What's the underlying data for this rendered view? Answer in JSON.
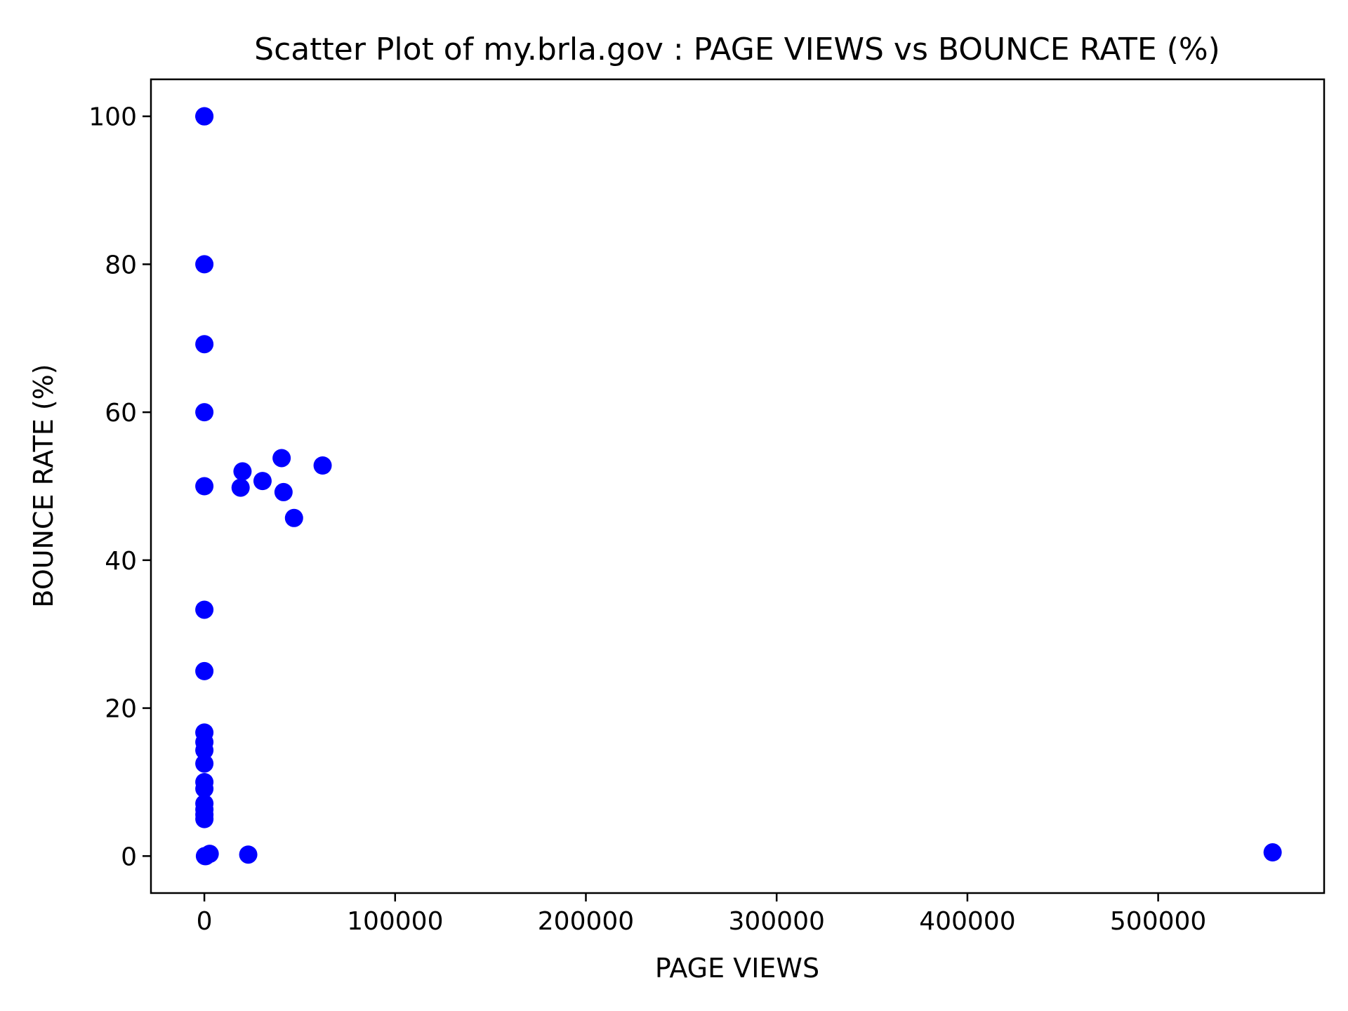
{
  "chart_data": {
    "type": "scatter",
    "title": "Scatter Plot of my.brla.gov : PAGE VIEWS vs BOUNCE RATE (%)",
    "xlabel": "PAGE VIEWS",
    "ylabel": "BOUNCE RATE (%)",
    "xlim": [
      -28000,
      587000
    ],
    "ylim": [
      -5,
      105
    ],
    "x_ticks": [
      0,
      100000,
      200000,
      300000,
      400000,
      500000
    ],
    "x_tick_labels": [
      "0",
      "100000",
      "200000",
      "300000",
      "400000",
      "500000"
    ],
    "y_ticks": [
      0,
      20,
      40,
      60,
      80,
      100
    ],
    "y_tick_labels": [
      "0",
      "20",
      "40",
      "60",
      "80",
      "100"
    ],
    "grid": false,
    "marker_color": "#0000ff",
    "points": [
      {
        "x": 1,
        "y": 100
      },
      {
        "x": 2,
        "y": 100
      },
      {
        "x": 5,
        "y": 80
      },
      {
        "x": 13,
        "y": 69.2
      },
      {
        "x": 5,
        "y": 60
      },
      {
        "x": 2,
        "y": 50
      },
      {
        "x": 3,
        "y": 33.3
      },
      {
        "x": 4,
        "y": 25
      },
      {
        "x": 6,
        "y": 16.7
      },
      {
        "x": 7,
        "y": 15.4
      },
      {
        "x": 8,
        "y": 14.3
      },
      {
        "x": 8,
        "y": 12.5
      },
      {
        "x": 10,
        "y": 10
      },
      {
        "x": 11,
        "y": 9.1
      },
      {
        "x": 14,
        "y": 7.1
      },
      {
        "x": 16,
        "y": 6.3
      },
      {
        "x": 18,
        "y": 5.6
      },
      {
        "x": 20,
        "y": 5
      },
      {
        "x": 300,
        "y": 0
      },
      {
        "x": 800,
        "y": 0
      },
      {
        "x": 2800,
        "y": 0.3
      },
      {
        "x": 23000,
        "y": 0.2
      },
      {
        "x": 20000,
        "y": 52
      },
      {
        "x": 19000,
        "y": 49.8
      },
      {
        "x": 30500,
        "y": 50.7
      },
      {
        "x": 40500,
        "y": 53.8
      },
      {
        "x": 41500,
        "y": 49.2
      },
      {
        "x": 47000,
        "y": 45.7
      },
      {
        "x": 62000,
        "y": 52.8
      },
      {
        "x": 560000,
        "y": 0.5
      }
    ]
  }
}
